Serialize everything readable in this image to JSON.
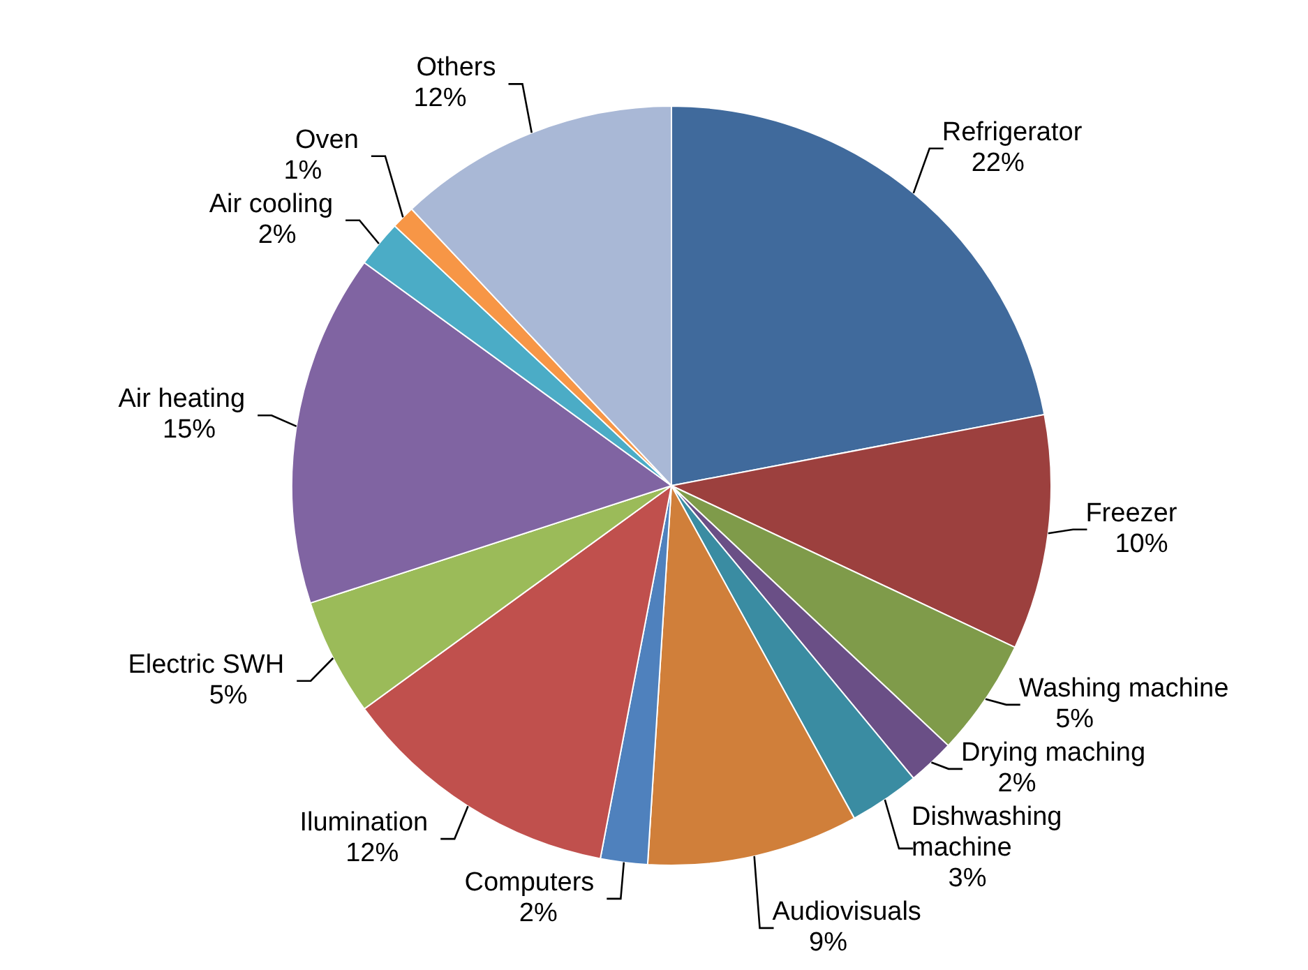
{
  "chart_data": {
    "type": "pie",
    "categories": [
      "Refrigerator",
      "Freezer",
      "Washing machine",
      "Drying maching",
      "Dishwashing machine",
      "Audiovisuals",
      "Computers",
      "Ilumination",
      "Electric SWH",
      "Air heating",
      "Air cooling",
      "Oven",
      "Others"
    ],
    "values": [
      22,
      10,
      5,
      2,
      3,
      9,
      2,
      12,
      5,
      15,
      2,
      1,
      12
    ],
    "value_labels": [
      "22%",
      "10%",
      "5%",
      "2%",
      "3%",
      "9%",
      "2%",
      "12%",
      "5%",
      "15%",
      "2%",
      "1%",
      "12%"
    ],
    "colors": [
      "#406a9c",
      "#9c403e",
      "#7f9b4a",
      "#6a4f86",
      "#3a8ca2",
      "#d07f3a",
      "#4f81bd",
      "#c0504d",
      "#9bbb59",
      "#8064a2",
      "#4bacc6",
      "#f79646",
      "#a9b8d6"
    ],
    "legend": false
  }
}
